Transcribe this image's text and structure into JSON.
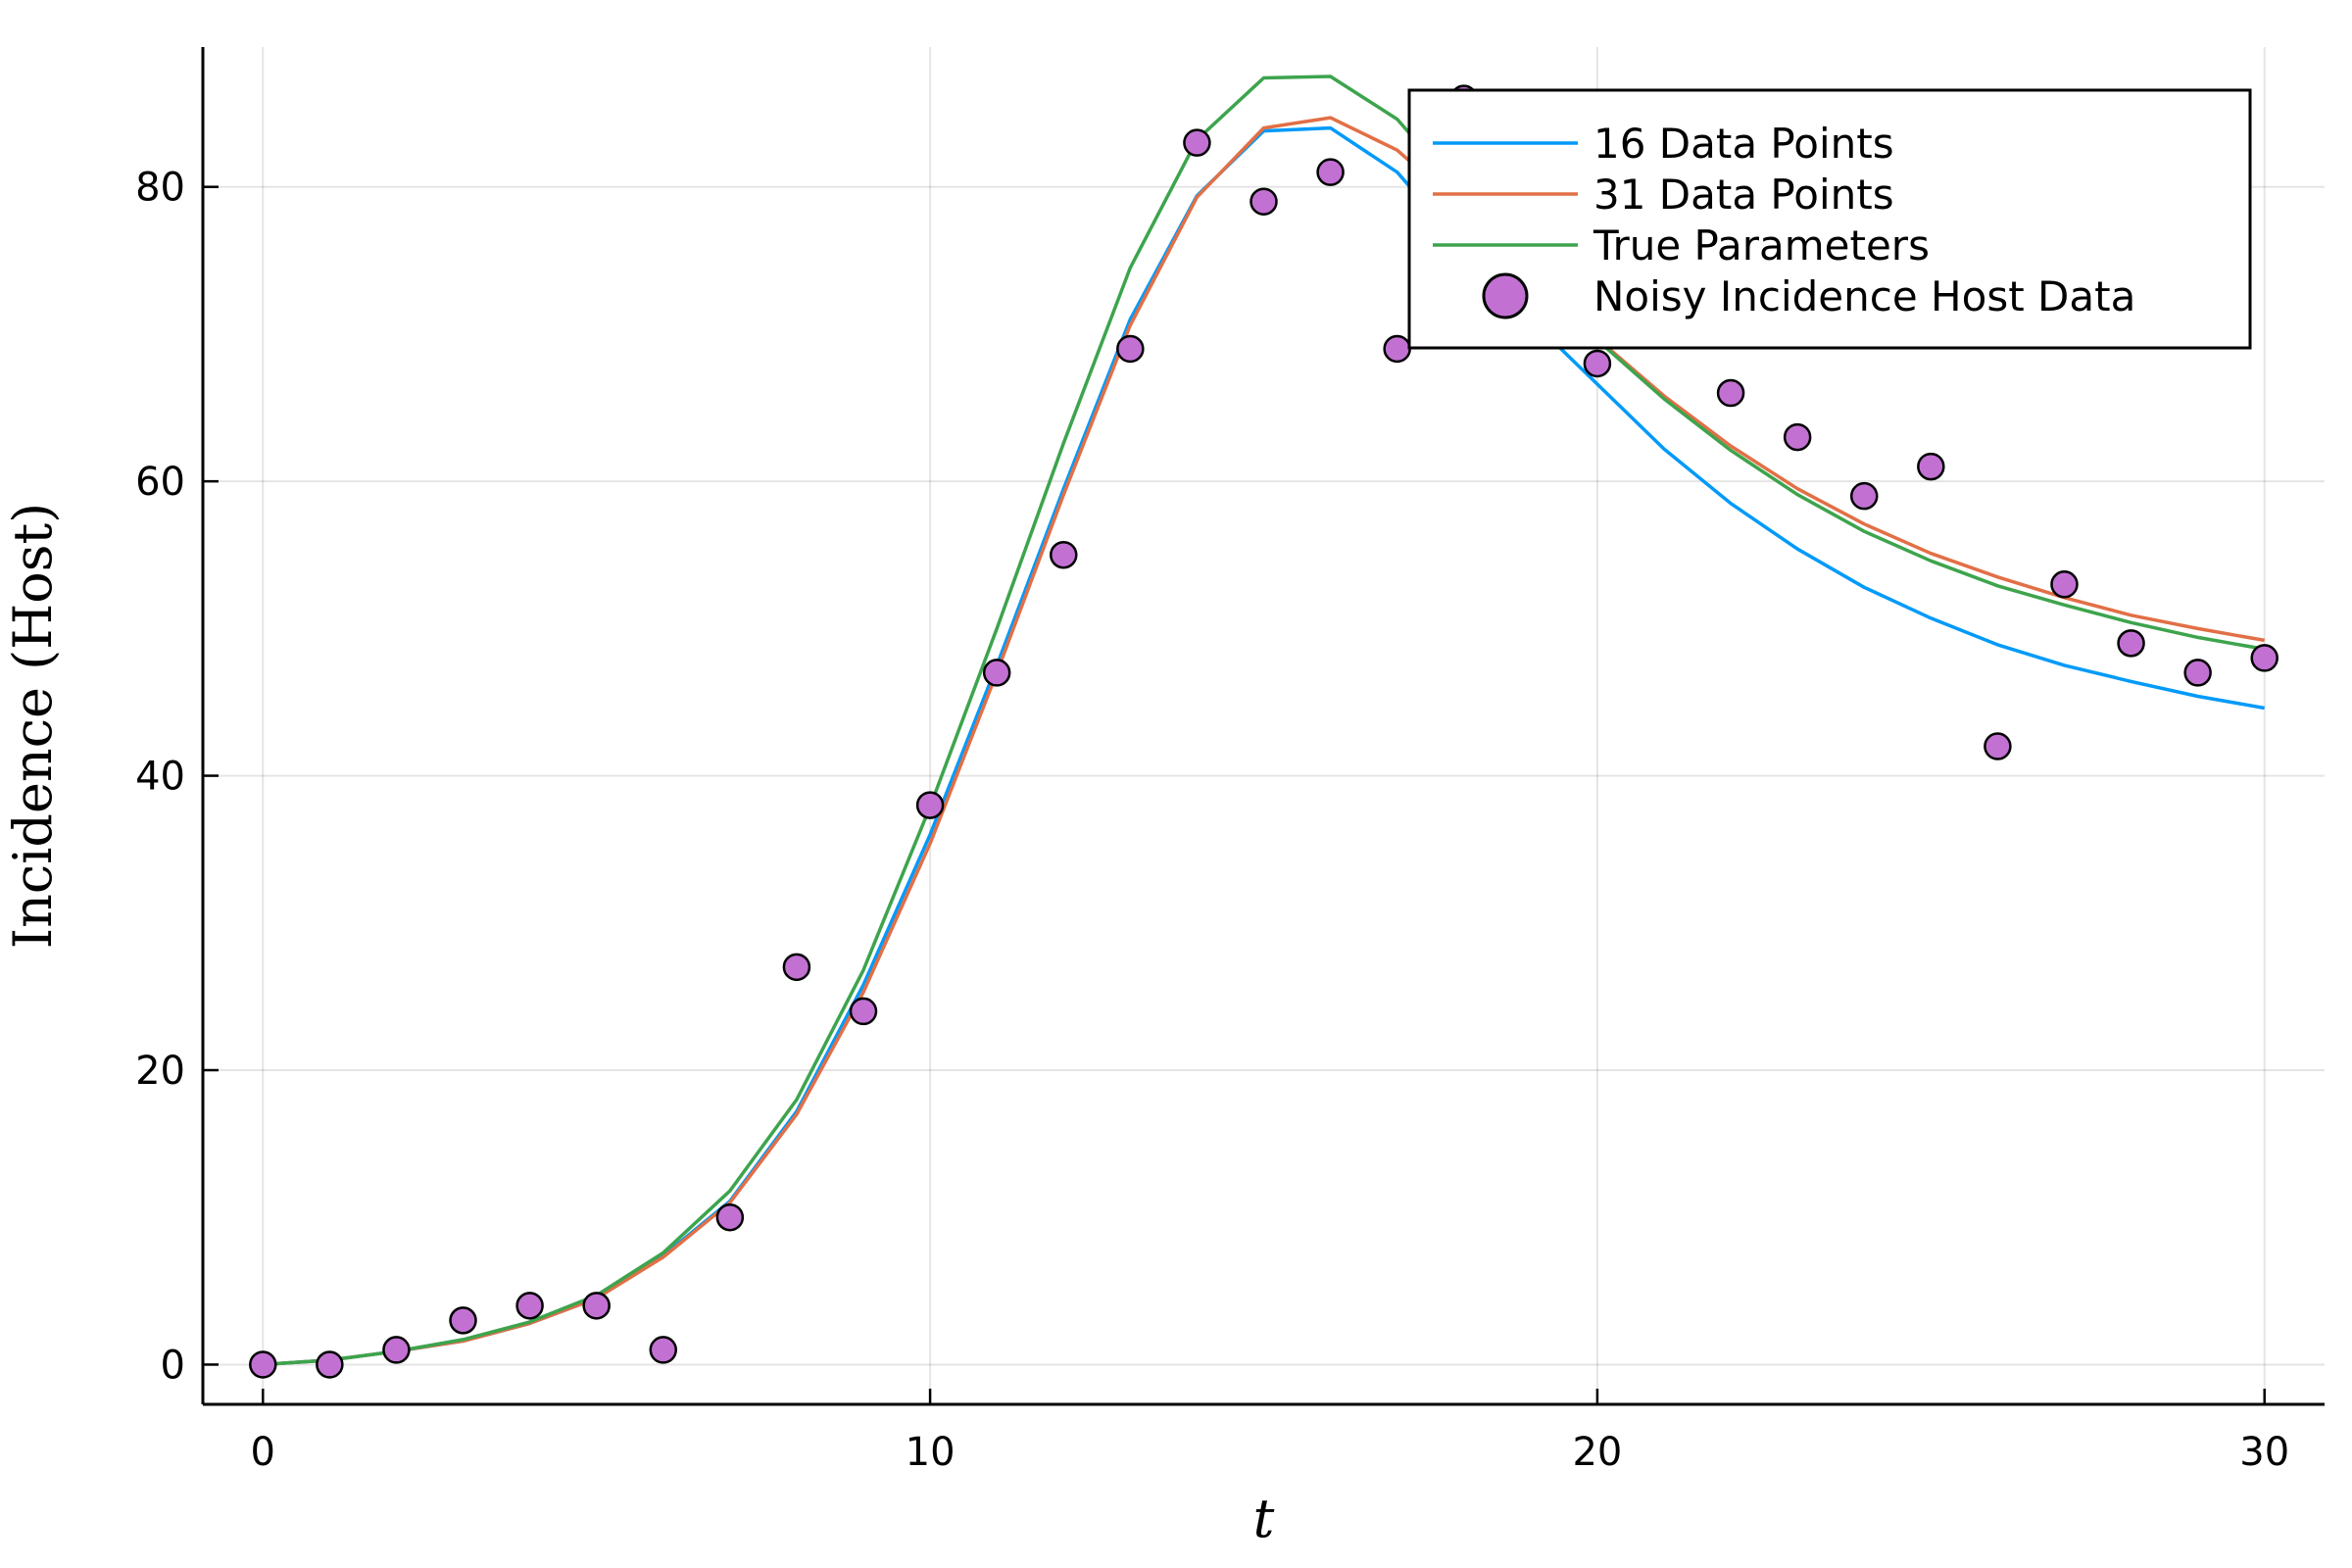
{
  "chart_data": {
    "type": "line",
    "xlabel": "t",
    "ylabel": "Incidence (Host)",
    "xlim": [
      -0.9,
      30.9
    ],
    "ylim": [
      -2.7,
      89.5
    ],
    "xticks": [
      0,
      10,
      20,
      30
    ],
    "yticks": [
      0,
      20,
      40,
      60,
      80
    ],
    "x_tick_labels": [
      "0",
      "10",
      "20",
      "30"
    ],
    "y_tick_labels": [
      "0",
      "20",
      "40",
      "60",
      "80"
    ],
    "grid": true,
    "legend_position": "top-right",
    "series": [
      {
        "name": "16 Data Points",
        "kind": "line",
        "color": "#009af9",
        "x": [
          0,
          1,
          2,
          3,
          4,
          5,
          6,
          7,
          8,
          9,
          10,
          11,
          12,
          13,
          14,
          15,
          16,
          17,
          18,
          19,
          20,
          21,
          22,
          23,
          24,
          25,
          26,
          27,
          28,
          29,
          30
        ],
        "y": [
          0,
          0.3,
          0.9,
          1.6,
          2.8,
          4.5,
          7.4,
          11.1,
          17.2,
          25.8,
          36.0,
          47.5,
          59.5,
          71.0,
          79.4,
          83.8,
          84.0,
          81.0,
          75.8,
          71.0,
          66.6,
          62.2,
          58.5,
          55.4,
          52.8,
          50.7,
          48.9,
          47.5,
          46.4,
          45.4,
          44.6
        ]
      },
      {
        "name": "31 Data Points",
        "kind": "line",
        "color": "#e26f46",
        "x": [
          0,
          1,
          2,
          3,
          4,
          5,
          6,
          7,
          8,
          9,
          10,
          11,
          12,
          13,
          14,
          15,
          16,
          17,
          18,
          19,
          20,
          21,
          22,
          23,
          24,
          25,
          26,
          27,
          28,
          29,
          30
        ],
        "y": [
          0,
          0.3,
          0.9,
          1.6,
          2.8,
          4.5,
          7.3,
          11.0,
          17.0,
          25.3,
          35.4,
          47.0,
          59.1,
          70.6,
          79.3,
          84.0,
          84.7,
          82.5,
          78.5,
          73.8,
          69.7,
          65.8,
          62.4,
          59.5,
          57.1,
          55.1,
          53.5,
          52.1,
          50.9,
          50.0,
          49.2
        ]
      },
      {
        "name": "True Parameters",
        "kind": "line",
        "color": "#3da44d",
        "x": [
          0,
          1,
          2,
          3,
          4,
          5,
          6,
          7,
          8,
          9,
          10,
          11,
          12,
          13,
          14,
          15,
          16,
          17,
          18,
          19,
          20,
          21,
          22,
          23,
          24,
          25,
          26,
          27,
          28,
          29,
          30
        ],
        "y": [
          0,
          0.3,
          0.9,
          1.7,
          2.9,
          4.7,
          7.6,
          11.8,
          18.0,
          26.8,
          37.9,
          50.0,
          62.6,
          74.5,
          83.2,
          87.4,
          87.5,
          84.6,
          79.4,
          74.1,
          69.6,
          65.6,
          62.1,
          59.1,
          56.6,
          54.6,
          52.9,
          51.6,
          50.4,
          49.4,
          48.6
        ]
      },
      {
        "name": "Noisy Incidence Host Data",
        "kind": "scatter",
        "color": "#c271d2",
        "x": [
          0,
          1,
          2,
          3,
          4,
          5,
          6,
          7,
          8,
          9,
          10,
          11,
          12,
          13,
          14,
          15,
          16,
          17,
          18,
          19,
          20,
          21,
          22,
          23,
          24,
          25,
          26,
          27,
          28,
          29,
          30
        ],
        "y": [
          0,
          0,
          1,
          3,
          4,
          4,
          1,
          10,
          27,
          24,
          38,
          47,
          55,
          69,
          83,
          79,
          81,
          69,
          86,
          70,
          68,
          70,
          66,
          63,
          59,
          61,
          42,
          53,
          49,
          47,
          48
        ]
      }
    ]
  }
}
